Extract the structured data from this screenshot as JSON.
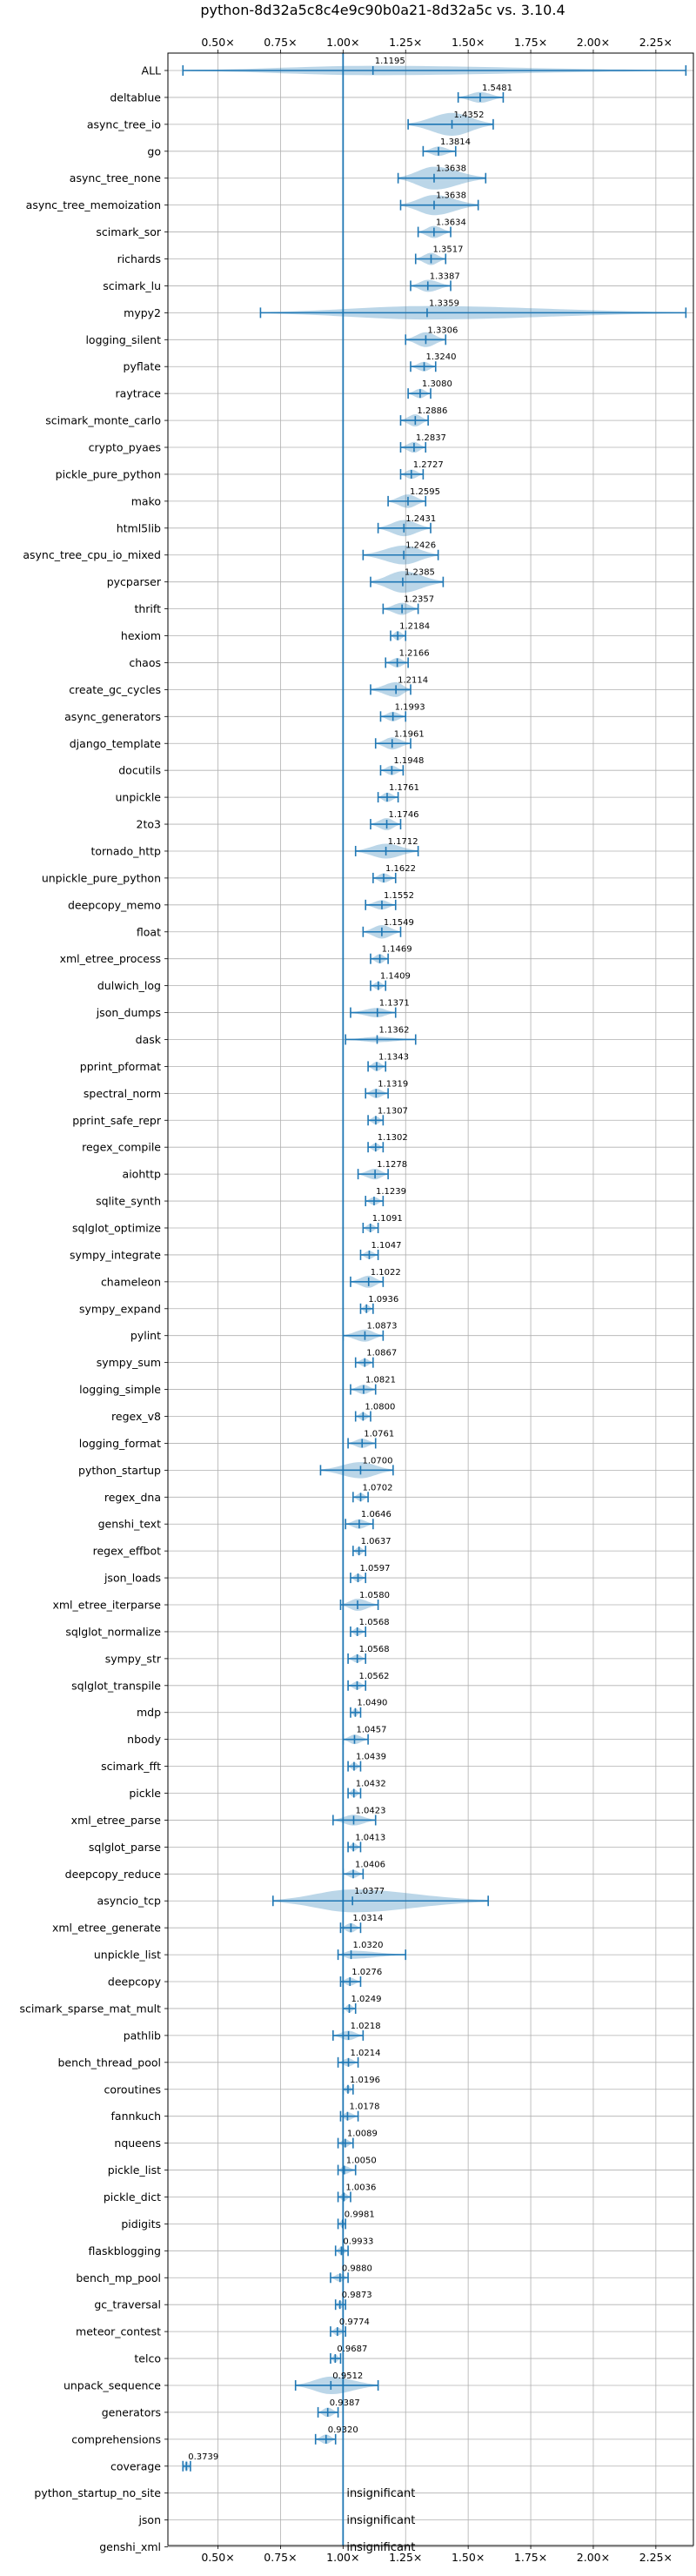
{
  "chart_data": {
    "type": "violin",
    "title": "python-8d32a5c8c4e9c90b0a21-8d32a5c vs. 3.10.4",
    "xlim": [
      0.3,
      2.4
    ],
    "xticks": [
      0.5,
      0.75,
      1.0,
      1.25,
      1.5,
      1.75,
      2.0,
      2.25
    ],
    "xtick_labels": [
      "0.50×",
      "0.75×",
      "1.00×",
      "1.25×",
      "1.50×",
      "1.75×",
      "2.00×",
      "2.25×"
    ],
    "grid": true,
    "insignificant_label": "insignificant",
    "benchmarks": [
      {
        "name": "ALL",
        "value": 1.1195,
        "label": "1.1195",
        "min": 0.36,
        "max": 2.37,
        "width": 0.35
      },
      {
        "name": "deltablue",
        "value": 1.5481,
        "label": "1.5481",
        "min": 1.46,
        "max": 1.64,
        "width": 0.4
      },
      {
        "name": "async_tree_io",
        "value": 1.4352,
        "label": "1.4352",
        "min": 1.26,
        "max": 1.6,
        "width": 0.85
      },
      {
        "name": "go",
        "value": 1.3814,
        "label": "1.3814",
        "min": 1.32,
        "max": 1.45,
        "width": 0.35
      },
      {
        "name": "async_tree_none",
        "value": 1.3638,
        "label": "1.3638",
        "min": 1.22,
        "max": 1.57,
        "width": 0.85
      },
      {
        "name": "async_tree_memoization",
        "value": 1.3638,
        "label": "1.3638",
        "min": 1.23,
        "max": 1.54,
        "width": 0.75
      },
      {
        "name": "scimark_sor",
        "value": 1.3634,
        "label": "1.3634",
        "min": 1.3,
        "max": 1.43,
        "width": 0.45
      },
      {
        "name": "richards",
        "value": 1.3517,
        "label": "1.3517",
        "min": 1.29,
        "max": 1.41,
        "width": 0.45
      },
      {
        "name": "scimark_lu",
        "value": 1.3387,
        "label": "1.3387",
        "min": 1.27,
        "max": 1.43,
        "width": 0.45
      },
      {
        "name": "mypy2",
        "value": 1.3359,
        "label": "1.3359",
        "min": 0.67,
        "max": 2.37,
        "width": 0.5
      },
      {
        "name": "logging_silent",
        "value": 1.3306,
        "label": "1.3306",
        "min": 1.25,
        "max": 1.41,
        "width": 0.55
      },
      {
        "name": "pyflate",
        "value": 1.324,
        "label": "1.3240",
        "min": 1.27,
        "max": 1.37,
        "width": 0.35
      },
      {
        "name": "raytrace",
        "value": 1.308,
        "label": "1.3080",
        "min": 1.26,
        "max": 1.35,
        "width": 0.35
      },
      {
        "name": "scimark_monte_carlo",
        "value": 1.2886,
        "label": "1.2886",
        "min": 1.23,
        "max": 1.34,
        "width": 0.45
      },
      {
        "name": "crypto_pyaes",
        "value": 1.2837,
        "label": "1.2837",
        "min": 1.23,
        "max": 1.33,
        "width": 0.4
      },
      {
        "name": "pickle_pure_python",
        "value": 1.2727,
        "label": "1.2727",
        "min": 1.23,
        "max": 1.32,
        "width": 0.35
      },
      {
        "name": "mako",
        "value": 1.2595,
        "label": "1.2595",
        "min": 1.18,
        "max": 1.33,
        "width": 0.5
      },
      {
        "name": "html5lib",
        "value": 1.2431,
        "label": "1.2431",
        "min": 1.14,
        "max": 1.35,
        "width": 0.6
      },
      {
        "name": "async_tree_cpu_io_mixed",
        "value": 1.2426,
        "label": "1.2426",
        "min": 1.08,
        "max": 1.38,
        "width": 0.7
      },
      {
        "name": "pycparser",
        "value": 1.2385,
        "label": "1.2385",
        "min": 1.11,
        "max": 1.4,
        "width": 0.8
      },
      {
        "name": "thrift",
        "value": 1.2357,
        "label": "1.2357",
        "min": 1.16,
        "max": 1.3,
        "width": 0.45
      },
      {
        "name": "hexiom",
        "value": 1.2184,
        "label": "1.2184",
        "min": 1.19,
        "max": 1.25,
        "width": 0.35
      },
      {
        "name": "chaos",
        "value": 1.2166,
        "label": "1.2166",
        "min": 1.17,
        "max": 1.26,
        "width": 0.35
      },
      {
        "name": "create_gc_cycles",
        "value": 1.2114,
        "label": "1.2114",
        "min": 1.11,
        "max": 1.27,
        "width": 0.55
      },
      {
        "name": "async_generators",
        "value": 1.1993,
        "label": "1.1993",
        "min": 1.15,
        "max": 1.25,
        "width": 0.35
      },
      {
        "name": "django_template",
        "value": 1.1961,
        "label": "1.1961",
        "min": 1.13,
        "max": 1.27,
        "width": 0.45
      },
      {
        "name": "docutils",
        "value": 1.1948,
        "label": "1.1948",
        "min": 1.15,
        "max": 1.24,
        "width": 0.35
      },
      {
        "name": "unpickle",
        "value": 1.1761,
        "label": "1.1761",
        "min": 1.14,
        "max": 1.22,
        "width": 0.35
      },
      {
        "name": "2to3",
        "value": 1.1746,
        "label": "1.1746",
        "min": 1.11,
        "max": 1.23,
        "width": 0.45
      },
      {
        "name": "tornado_http",
        "value": 1.1712,
        "label": "1.1712",
        "min": 1.05,
        "max": 1.3,
        "width": 0.55
      },
      {
        "name": "unpickle_pure_python",
        "value": 1.1622,
        "label": "1.1622",
        "min": 1.12,
        "max": 1.21,
        "width": 0.35
      },
      {
        "name": "deepcopy_memo",
        "value": 1.1552,
        "label": "1.1552",
        "min": 1.09,
        "max": 1.21,
        "width": 0.35
      },
      {
        "name": "float",
        "value": 1.1549,
        "label": "1.1549",
        "min": 1.08,
        "max": 1.23,
        "width": 0.5
      },
      {
        "name": "xml_etree_process",
        "value": 1.1469,
        "label": "1.1469",
        "min": 1.11,
        "max": 1.18,
        "width": 0.35
      },
      {
        "name": "dulwich_log",
        "value": 1.1409,
        "label": "1.1409",
        "min": 1.11,
        "max": 1.17,
        "width": 0.3
      },
      {
        "name": "json_dumps",
        "value": 1.1371,
        "label": "1.1371",
        "min": 1.03,
        "max": 1.21,
        "width": 0.35
      },
      {
        "name": "dask",
        "value": 1.1362,
        "label": "1.1362",
        "min": 1.01,
        "max": 1.29,
        "width": 0.2
      },
      {
        "name": "pprint_pformat",
        "value": 1.1343,
        "label": "1.1343",
        "min": 1.1,
        "max": 1.17,
        "width": 0.35
      },
      {
        "name": "spectral_norm",
        "value": 1.1319,
        "label": "1.1319",
        "min": 1.09,
        "max": 1.18,
        "width": 0.35
      },
      {
        "name": "pprint_safe_repr",
        "value": 1.1307,
        "label": "1.1307",
        "min": 1.1,
        "max": 1.16,
        "width": 0.3
      },
      {
        "name": "regex_compile",
        "value": 1.1302,
        "label": "1.1302",
        "min": 1.1,
        "max": 1.16,
        "width": 0.3
      },
      {
        "name": "aiohttp",
        "value": 1.1278,
        "label": "1.1278",
        "min": 1.06,
        "max": 1.18,
        "width": 0.4
      },
      {
        "name": "sqlite_synth",
        "value": 1.1239,
        "label": "1.1239",
        "min": 1.09,
        "max": 1.16,
        "width": 0.3
      },
      {
        "name": "sqlglot_optimize",
        "value": 1.1091,
        "label": "1.1091",
        "min": 1.08,
        "max": 1.14,
        "width": 0.3
      },
      {
        "name": "sympy_integrate",
        "value": 1.1047,
        "label": "1.1047",
        "min": 1.07,
        "max": 1.14,
        "width": 0.3
      },
      {
        "name": "chameleon",
        "value": 1.1022,
        "label": "1.1022",
        "min": 1.03,
        "max": 1.16,
        "width": 0.45
      },
      {
        "name": "sympy_expand",
        "value": 1.0936,
        "label": "1.0936",
        "min": 1.07,
        "max": 1.12,
        "width": 0.3
      },
      {
        "name": "pylint",
        "value": 1.0873,
        "label": "1.0873",
        "min": 1.0,
        "max": 1.16,
        "width": 0.45
      },
      {
        "name": "sympy_sum",
        "value": 1.0867,
        "label": "1.0867",
        "min": 1.05,
        "max": 1.12,
        "width": 0.3
      },
      {
        "name": "logging_simple",
        "value": 1.0821,
        "label": "1.0821",
        "min": 1.03,
        "max": 1.13,
        "width": 0.35
      },
      {
        "name": "regex_v8",
        "value": 1.08,
        "label": "1.0800",
        "min": 1.05,
        "max": 1.11,
        "width": 0.3
      },
      {
        "name": "logging_format",
        "value": 1.0761,
        "label": "1.0761",
        "min": 1.02,
        "max": 1.13,
        "width": 0.35
      },
      {
        "name": "python_startup",
        "value": 1.07,
        "label": "1.0700",
        "min": 0.91,
        "max": 1.2,
        "width": 0.6
      },
      {
        "name": "regex_dna",
        "value": 1.0702,
        "label": "1.0702",
        "min": 1.04,
        "max": 1.1,
        "width": 0.3
      },
      {
        "name": "genshi_text",
        "value": 1.0646,
        "label": "1.0646",
        "min": 1.01,
        "max": 1.12,
        "width": 0.35
      },
      {
        "name": "regex_effbot",
        "value": 1.0637,
        "label": "1.0637",
        "min": 1.04,
        "max": 1.09,
        "width": 0.3
      },
      {
        "name": "json_loads",
        "value": 1.0597,
        "label": "1.0597",
        "min": 1.03,
        "max": 1.09,
        "width": 0.3
      },
      {
        "name": "xml_etree_iterparse",
        "value": 1.058,
        "label": "1.0580",
        "min": 0.99,
        "max": 1.14,
        "width": 0.45
      },
      {
        "name": "sqlglot_normalize",
        "value": 1.0568,
        "label": "1.0568",
        "min": 1.03,
        "max": 1.09,
        "width": 0.3
      },
      {
        "name": "sympy_str",
        "value": 1.0568,
        "label": "1.0568",
        "min": 1.02,
        "max": 1.09,
        "width": 0.3
      },
      {
        "name": "sqlglot_transpile",
        "value": 1.0562,
        "label": "1.0562",
        "min": 1.02,
        "max": 1.09,
        "width": 0.3
      },
      {
        "name": "mdp",
        "value": 1.049,
        "label": "1.0490",
        "min": 1.03,
        "max": 1.07,
        "width": 0.3
      },
      {
        "name": "nbody",
        "value": 1.0457,
        "label": "1.0457",
        "min": 1.0,
        "max": 1.1,
        "width": 0.35
      },
      {
        "name": "scimark_fft",
        "value": 1.0439,
        "label": "1.0439",
        "min": 1.02,
        "max": 1.07,
        "width": 0.3
      },
      {
        "name": "pickle",
        "value": 1.0432,
        "label": "1.0432",
        "min": 1.02,
        "max": 1.07,
        "width": 0.3
      },
      {
        "name": "xml_etree_parse",
        "value": 1.0423,
        "label": "1.0423",
        "min": 0.96,
        "max": 1.13,
        "width": 0.4
      },
      {
        "name": "sqlglot_parse",
        "value": 1.0413,
        "label": "1.0413",
        "min": 1.02,
        "max": 1.07,
        "width": 0.3
      },
      {
        "name": "deepcopy_reduce",
        "value": 1.0406,
        "label": "1.0406",
        "min": 1.0,
        "max": 1.08,
        "width": 0.3
      },
      {
        "name": "asyncio_tcp",
        "value": 1.0377,
        "label": "1.0377",
        "min": 0.72,
        "max": 1.58,
        "width": 0.85
      },
      {
        "name": "xml_etree_generate",
        "value": 1.0314,
        "label": "1.0314",
        "min": 0.99,
        "max": 1.07,
        "width": 0.35
      },
      {
        "name": "unpickle_list",
        "value": 1.032,
        "label": "1.0320",
        "min": 0.98,
        "max": 1.25,
        "width": 0.3
      },
      {
        "name": "deepcopy",
        "value": 1.0276,
        "label": "1.0276",
        "min": 0.99,
        "max": 1.07,
        "width": 0.3
      },
      {
        "name": "scimark_sparse_mat_mult",
        "value": 1.0249,
        "label": "1.0249",
        "min": 1.0,
        "max": 1.05,
        "width": 0.3
      },
      {
        "name": "pathlib",
        "value": 1.0218,
        "label": "1.0218",
        "min": 0.96,
        "max": 1.08,
        "width": 0.35
      },
      {
        "name": "bench_thread_pool",
        "value": 1.0214,
        "label": "1.0214",
        "min": 0.98,
        "max": 1.06,
        "width": 0.3
      },
      {
        "name": "coroutines",
        "value": 1.0196,
        "label": "1.0196",
        "min": 1.0,
        "max": 1.04,
        "width": 0.3
      },
      {
        "name": "fannkuch",
        "value": 1.0178,
        "label": "1.0178",
        "min": 0.99,
        "max": 1.06,
        "width": 0.3
      },
      {
        "name": "nqueens",
        "value": 1.0089,
        "label": "1.0089",
        "min": 0.98,
        "max": 1.04,
        "width": 0.3
      },
      {
        "name": "pickle_list",
        "value": 1.005,
        "label": "1.0050",
        "min": 0.98,
        "max": 1.05,
        "width": 0.3
      },
      {
        "name": "pickle_dict",
        "value": 1.0036,
        "label": "1.0036",
        "min": 0.98,
        "max": 1.03,
        "width": 0.3
      },
      {
        "name": "pidigits",
        "value": 0.9981,
        "label": "0.9981",
        "min": 0.98,
        "max": 1.01,
        "width": 0.3
      },
      {
        "name": "flaskblogging",
        "value": 0.9933,
        "label": "0.9933",
        "min": 0.97,
        "max": 1.02,
        "width": 0.3
      },
      {
        "name": "bench_mp_pool",
        "value": 0.988,
        "label": "0.9880",
        "min": 0.95,
        "max": 1.02,
        "width": 0.3
      },
      {
        "name": "gc_traversal",
        "value": 0.9873,
        "label": "0.9873",
        "min": 0.97,
        "max": 1.01,
        "width": 0.3
      },
      {
        "name": "meteor_contest",
        "value": 0.9774,
        "label": "0.9774",
        "min": 0.95,
        "max": 1.01,
        "width": 0.3
      },
      {
        "name": "telco",
        "value": 0.9687,
        "label": "0.9687",
        "min": 0.95,
        "max": 0.99,
        "width": 0.3
      },
      {
        "name": "unpack_sequence",
        "value": 0.9512,
        "label": "0.9512",
        "min": 0.81,
        "max": 1.14,
        "width": 0.65
      },
      {
        "name": "generators",
        "value": 0.9387,
        "label": "0.9387",
        "min": 0.9,
        "max": 0.98,
        "width": 0.35
      },
      {
        "name": "comprehensions",
        "value": 0.932,
        "label": "0.9320",
        "min": 0.89,
        "max": 0.97,
        "width": 0.35
      },
      {
        "name": "coverage",
        "value": 0.3739,
        "label": "0.3739",
        "min": 0.36,
        "max": 0.39,
        "width": 0.4
      },
      {
        "name": "python_startup_no_site",
        "value": null,
        "label": "",
        "insignificant": true
      },
      {
        "name": "json",
        "value": null,
        "label": "",
        "insignificant": true
      },
      {
        "name": "genshi_xml",
        "value": null,
        "label": "",
        "insignificant": true
      }
    ]
  }
}
